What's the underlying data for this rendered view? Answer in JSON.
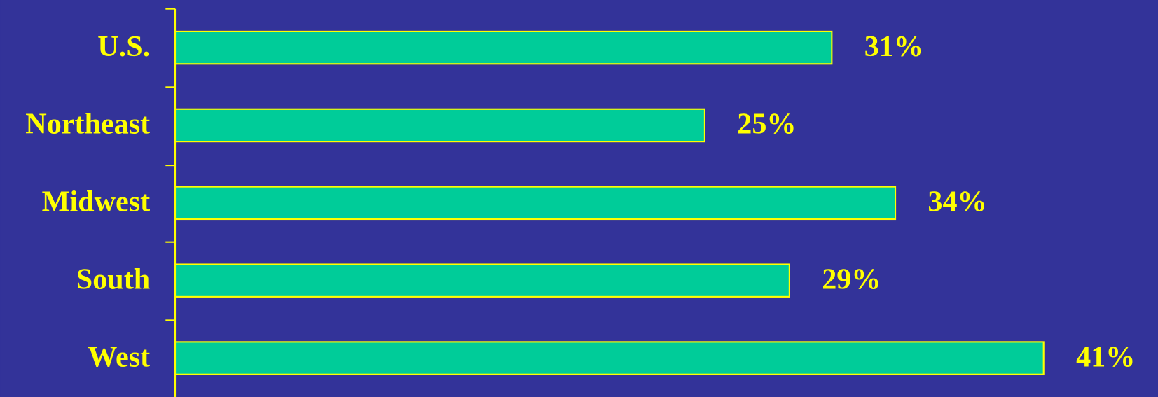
{
  "chart_data": {
    "type": "bar",
    "orientation": "horizontal",
    "categories": [
      "U.S.",
      "Northeast",
      "Midwest",
      "South",
      "West"
    ],
    "values": [
      31,
      25,
      34,
      29,
      41
    ],
    "value_labels": [
      "31%",
      "25%",
      "34%",
      "29%",
      "41%"
    ],
    "color": "#00cc99"
  }
}
